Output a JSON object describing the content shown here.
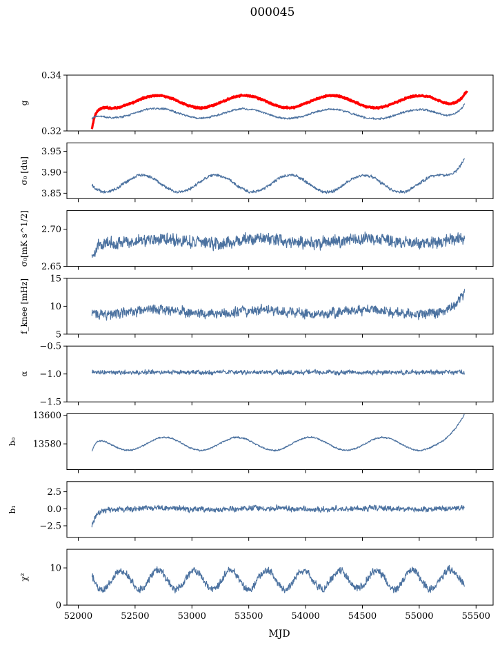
{
  "figure": {
    "title": "000045",
    "xlabel": "MJD"
  },
  "colors": {
    "series": "#4c72a0",
    "highlight": "#ff0000",
    "axes": "#000000"
  },
  "chart_data": [
    {
      "type": "line",
      "name": "g",
      "ylabel": "g",
      "ylim": [
        0.32,
        0.34
      ],
      "yticks": [
        0.32,
        0.34
      ],
      "ytick_labels": [
        "0.32",
        "0.34"
      ],
      "xlim": [
        51900,
        55650
      ],
      "series": [
        {
          "color": "#ff0000",
          "base": 0.3305,
          "amp": 0.0022,
          "period": 770,
          "phase": 52500,
          "noise": 0.00035,
          "drift": 0.0,
          "start_dip": -0.01,
          "end": 55420,
          "end_rise": 0.006,
          "band": 0.0004
        },
        {
          "color": "#4c72a0",
          "base": 0.3265,
          "amp": 0.0017,
          "period": 770,
          "phase": 52500,
          "noise": 0.0004,
          "drift": -0.0002,
          "start_dip": -0.002,
          "end": 55400,
          "end_rise": 0.0055,
          "band": 0
        }
      ]
    },
    {
      "type": "line",
      "name": "sigma0_du",
      "ylabel": "σ₀ [du]",
      "ylim": [
        3.837,
        3.97
      ],
      "yticks": [
        3.85,
        3.9,
        3.95
      ],
      "ytick_labels": [
        "3.85",
        "3.90",
        "3.95"
      ],
      "xlim": [
        51900,
        55650
      ],
      "series": [
        {
          "color": "#4c72a0",
          "base": 3.873,
          "amp": 0.02,
          "period": 650,
          "phase": 52400,
          "noise": 0.004,
          "drift": 0.0,
          "start_dip": 0.005,
          "end": 55400,
          "end_rise": 0.075,
          "band": 0
        }
      ]
    },
    {
      "type": "line",
      "name": "sigma0_mKs",
      "ylabel": "σ₀[mK s^1/2]",
      "ylim": [
        2.65,
        2.725
      ],
      "yticks": [
        2.65,
        2.7
      ],
      "ytick_labels": [
        "2.65",
        "2.70"
      ],
      "xlim": [
        51900,
        55650
      ],
      "series": [
        {
          "color": "#4c72a0",
          "base": 2.684,
          "amp": 0.003,
          "period": 900,
          "phase": 52500,
          "noise": 0.009,
          "drift": 0.0,
          "start_dip": -0.02,
          "end": 55400,
          "end_rise": 0.0,
          "band": 0
        }
      ]
    },
    {
      "type": "line",
      "name": "fknee",
      "ylabel": "f_knee [mHz]",
      "ylim": [
        5,
        15
      ],
      "yticks": [
        5,
        10,
        15
      ],
      "ytick_labels": [
        "5",
        "10",
        "15"
      ],
      "xlim": [
        51900,
        55650
      ],
      "series": [
        {
          "color": "#4c72a0",
          "base": 9.0,
          "amp": 0.4,
          "period": 900,
          "phase": 52500,
          "noise": 1.0,
          "drift": 0.0,
          "start_dip": 0.0,
          "end": 55400,
          "end_rise": 3.2,
          "band": 0
        }
      ]
    },
    {
      "type": "line",
      "name": "alpha",
      "ylabel": "α",
      "ylim": [
        -1.5,
        -0.5
      ],
      "yticks": [
        -1.5,
        -1.0,
        -0.5
      ],
      "ytick_labels": [
        "−1.5",
        "−1.0",
        "−0.5"
      ],
      "xlim": [
        51900,
        55650
      ],
      "series": [
        {
          "color": "#4c72a0",
          "base": -0.97,
          "amp": 0.0,
          "period": 900,
          "phase": 52500,
          "noise": 0.045,
          "drift": 0.0,
          "start_dip": 0.0,
          "end": 55400,
          "end_rise": 0.0,
          "band": 0
        }
      ]
    },
    {
      "type": "line",
      "name": "b0",
      "ylabel": "b₀",
      "ylim": [
        13562,
        13601
      ],
      "yticks": [
        13580,
        13600
      ],
      "ytick_labels": [
        "13580",
        "13600"
      ],
      "xlim": [
        51900,
        55650
      ],
      "series": [
        {
          "color": "#4c72a0",
          "base": 13580,
          "amp": 4.5,
          "period": 640,
          "phase": 52600,
          "noise": 0.6,
          "drift": 0.0,
          "start_dip": -10.0,
          "end": 55400,
          "end_rise": 18.0,
          "band": 0
        }
      ]
    },
    {
      "type": "line",
      "name": "b1",
      "ylabel": "b₁",
      "ylim": [
        -4.2,
        4.0
      ],
      "yticks": [
        -2.5,
        0.0,
        2.5
      ],
      "ytick_labels": [
        "−2.5",
        "0.0",
        "2.5"
      ],
      "xlim": [
        51900,
        55650
      ],
      "series": [
        {
          "color": "#4c72a0",
          "base": 0.0,
          "amp": 0.1,
          "period": 900,
          "phase": 52500,
          "noise": 0.45,
          "drift": 0.0,
          "start_dip": -2.5,
          "end": 55400,
          "end_rise": 0.0,
          "band": 0
        }
      ]
    },
    {
      "type": "line",
      "name": "chi2",
      "ylabel": "χ²",
      "ylim": [
        0,
        15
      ],
      "yticks": [
        0,
        10
      ],
      "ytick_labels": [
        "0",
        "10"
      ],
      "xlim": [
        51900,
        55650
      ],
      "xticks": [
        52000,
        52500,
        53000,
        53500,
        54000,
        54500,
        55000,
        55500
      ],
      "xtick_labels": [
        "52000",
        "52500",
        "53000",
        "53500",
        "54000",
        "54500",
        "55000",
        "55500"
      ],
      "series": [
        {
          "color": "#4c72a0",
          "base": 6.8,
          "amp": 2.5,
          "period": 320,
          "phase": 52300,
          "noise": 1.1,
          "drift": 0.0,
          "start_dip": 0.0,
          "end": 55400,
          "end_rise": 1.5,
          "band": 0
        }
      ]
    }
  ]
}
